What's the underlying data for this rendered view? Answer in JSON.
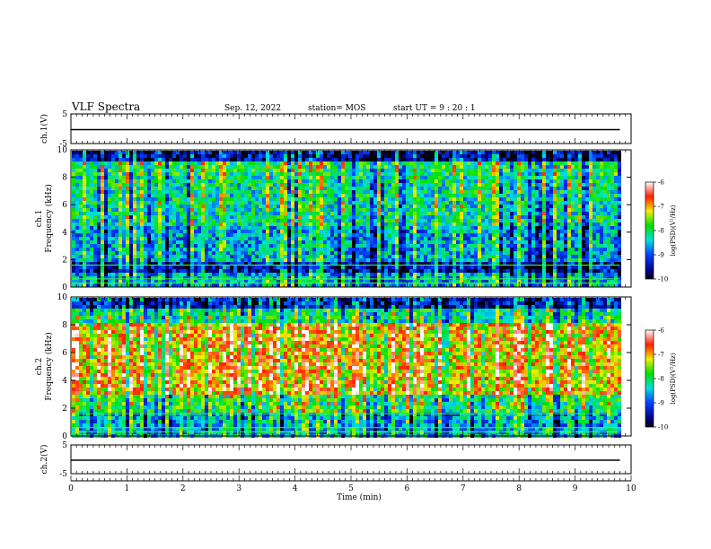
{
  "header": {
    "title": "VLF Spectra",
    "date": "Sep. 12, 2022",
    "station": "station= MOS",
    "start": "start UT =  9 : 20 : 1"
  },
  "chart_data": [
    {
      "type": "line",
      "name": "ch1-waveform",
      "ylabel": "ch.1(V)",
      "ylim": [
        -5,
        5
      ],
      "yticks": [
        "5",
        "-5"
      ],
      "xlim": [
        0,
        10
      ],
      "x": [
        0,
        9.8
      ],
      "values": [
        -0.3,
        -0.3
      ]
    },
    {
      "type": "heatmap",
      "name": "ch1-spectrogram",
      "ylabel": "ch.1\nFrequency (kHz)",
      "ylabel_line1": "ch.1",
      "ylabel_line2": "Frequency (kHz)",
      "ylim": [
        0,
        10
      ],
      "yticks": [
        "0",
        "2",
        "4",
        "6",
        "8",
        "10"
      ],
      "xlim": [
        0,
        10
      ],
      "data_end_min": 9.8,
      "colorbar": {
        "label": "log(PSD)(V²/Hz)",
        "ticks": [
          "-6",
          "-7",
          "-8",
          "-9",
          "-10"
        ],
        "range": [
          -10,
          -6
        ]
      }
    },
    {
      "type": "heatmap",
      "name": "ch2-spectrogram",
      "ylabel": "ch.2\nFrequency (kHz)",
      "ylabel_line1": "ch.2",
      "ylabel_line2": "Frequency (kHz)",
      "ylim": [
        0,
        10
      ],
      "yticks": [
        "0",
        "2",
        "4",
        "6",
        "8",
        "10"
      ],
      "xlim": [
        0,
        10
      ],
      "data_end_min": 9.8,
      "colorbar": {
        "label": "log(PSD)(V²/Hz)",
        "ticks": [
          "-6",
          "-7",
          "-8",
          "-9",
          "-10"
        ],
        "range": [
          -10,
          -6
        ]
      }
    },
    {
      "type": "line",
      "name": "ch2-waveform",
      "ylabel": "ch.2(V)",
      "ylim": [
        -5,
        5
      ],
      "yticks": [
        "5",
        "-5"
      ],
      "xlim": [
        0,
        10
      ],
      "x": [
        0,
        9.8
      ],
      "values": [
        -0.3,
        -0.3
      ]
    }
  ],
  "xaxis": {
    "label": "Time (min)",
    "ticks": [
      "0",
      "1",
      "2",
      "3",
      "4",
      "5",
      "6",
      "7",
      "8",
      "9",
      "10"
    ]
  }
}
